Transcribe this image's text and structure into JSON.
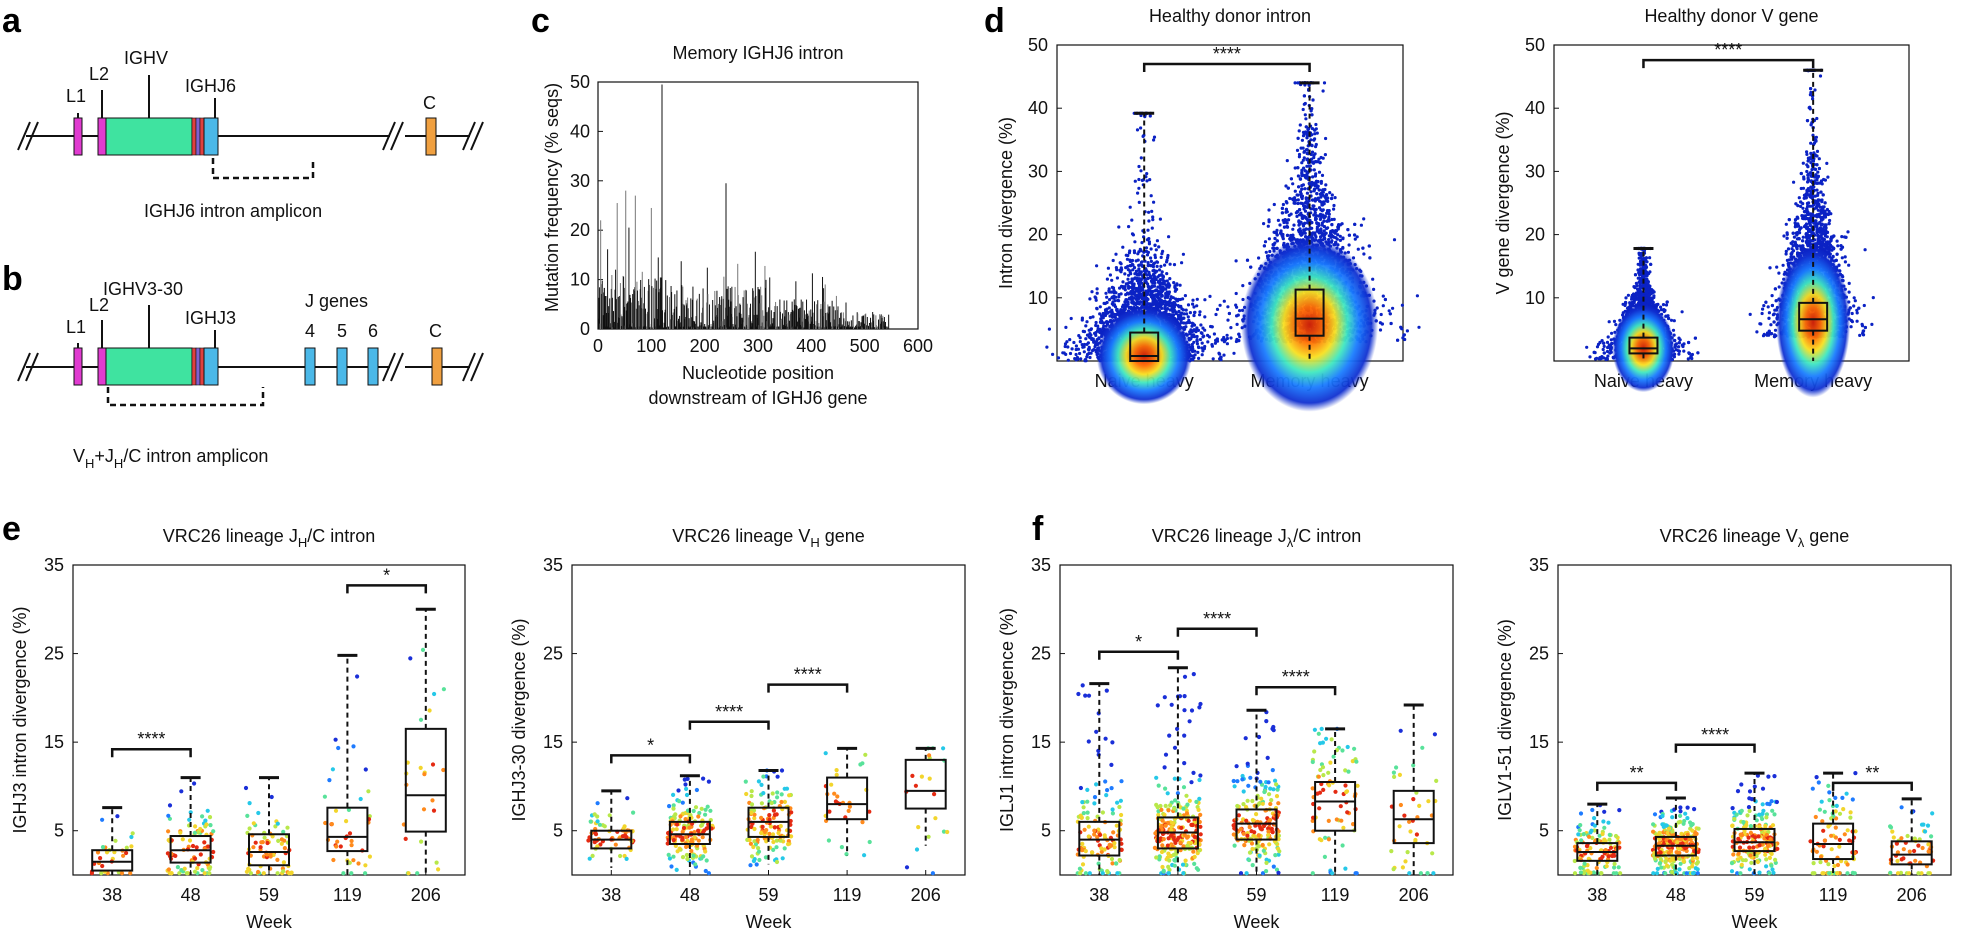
{
  "colors": {
    "exon_magenta": "#e03bd0",
    "v_gene_green": "#3fe3a0",
    "j_blue": "#4bb8e8",
    "c_orange": "#f0a040",
    "stripe_red": "#e04040",
    "stripe_purple": "#8060d0",
    "black": "#111111"
  },
  "panel_a": {
    "letter": "a",
    "labels": {
      "l1": "L1",
      "l2": "L2",
      "ighv": "IGHV",
      "ighj6": "IGHJ6",
      "c": "C"
    },
    "amplicon_label": "IGHJ6 intron amplicon"
  },
  "panel_b": {
    "letter": "b",
    "labels": {
      "l1": "L1",
      "l2": "L2",
      "ighv": "IGHV3-30",
      "ighj3": "IGHJ3",
      "j_genes": "J genes",
      "j4": "4",
      "j5": "5",
      "j6": "6",
      "c": "C"
    },
    "amplicon_label_parts": [
      "V",
      "H",
      "+J",
      "H",
      "/C intron amplicon"
    ]
  },
  "chart_data": [
    {
      "id": "c",
      "letter": "c",
      "type": "bar",
      "title": "Memory IGHJ6 intron",
      "ylabel": "Mutation frequency (% seqs)",
      "xlabel_lines": [
        "Nucleotide position",
        "downstream of IGHJ6 gene"
      ],
      "xlim": [
        0,
        600
      ],
      "ylim": [
        0,
        50
      ],
      "xticks": [
        0,
        100,
        200,
        300,
        400,
        500,
        600
      ],
      "yticks": [
        0,
        10,
        20,
        30,
        40,
        50
      ],
      "notable_peaks": [
        {
          "x": 120,
          "y": 49.5
        },
        {
          "x": 240,
          "y": 29.5
        },
        {
          "x": 52,
          "y": 28
        },
        {
          "x": 70,
          "y": 27
        },
        {
          "x": 36,
          "y": 25.5
        },
        {
          "x": 100,
          "y": 24.5
        },
        {
          "x": 5,
          "y": 22
        }
      ],
      "x_end": 545
    },
    {
      "id": "d1",
      "letter": "d",
      "type": "box",
      "title": "Healthy donor intron",
      "ylabel": "Intron divergence (%)",
      "ylim": [
        0,
        50
      ],
      "yticks": [
        10,
        20,
        30,
        40,
        50
      ],
      "categories": [
        "Naive heavy",
        "Memory heavy"
      ],
      "boxes": [
        {
          "q1": 0,
          "median": 0.8,
          "q3": 4.5,
          "whisker_low": 0,
          "whisker_high": 39.2,
          "cloud_spread": 25
        },
        {
          "q1": 4,
          "median": 6.7,
          "q3": 11.3,
          "whisker_low": 0,
          "whisker_high": 44,
          "cloud_spread": 36
        }
      ],
      "significance": [
        {
          "from": 0,
          "to": 1,
          "y": 47,
          "label": "****"
        }
      ]
    },
    {
      "id": "d2",
      "type": "box",
      "title": "Healthy donor V gene",
      "ylabel": "V gene divergence (%)",
      "ylim": [
        0,
        50
      ],
      "yticks": [
        10,
        20,
        30,
        40,
        50
      ],
      "categories": [
        "Naive heavy",
        "Memory heavy"
      ],
      "boxes": [
        {
          "q1": 1.2,
          "median": 2,
          "q3": 3.7,
          "whisker_low": 0,
          "whisker_high": 17.8,
          "cloud_spread": 16
        },
        {
          "q1": 4.8,
          "median": 6.6,
          "q3": 9.2,
          "whisker_low": 0,
          "whisker_high": 46,
          "cloud_spread": 19
        }
      ],
      "significance": [
        {
          "from": 0,
          "to": 1,
          "y": 47.6,
          "label": "****"
        }
      ]
    },
    {
      "id": "e1",
      "letter": "e",
      "type": "box",
      "title_parts": [
        "VRC26 lineage J",
        "H",
        "/C intron"
      ],
      "ylabel": "IGHJ3 intron divergence (%)",
      "xlabel": "Week",
      "ylim": [
        0,
        35
      ],
      "yticks": [
        5,
        15,
        25,
        35
      ],
      "categories": [
        "38",
        "48",
        "59",
        "119",
        "206"
      ],
      "boxes": [
        {
          "q1": 0.5,
          "median": 1.5,
          "q3": 2.8,
          "whisker_low": 0,
          "whisker_high": 7.6,
          "n": 30
        },
        {
          "q1": 1.4,
          "median": 2.8,
          "q3": 4.4,
          "whisker_low": 0,
          "whisker_high": 11,
          "n": 90
        },
        {
          "q1": 1.1,
          "median": 2.6,
          "q3": 4.6,
          "whisker_low": 0,
          "whisker_high": 11,
          "n": 70
        },
        {
          "q1": 2.7,
          "median": 4.3,
          "q3": 7.6,
          "whisker_low": 0,
          "whisker_high": 24.8,
          "n": 40
        },
        {
          "q1": 4.9,
          "median": 9,
          "q3": 16.5,
          "whisker_low": 0,
          "whisker_high": 30,
          "n": 25
        }
      ],
      "significance": [
        {
          "from": 0,
          "to": 1,
          "y": 14.2,
          "label": "****"
        },
        {
          "from": 3,
          "to": 4,
          "y": 32.7,
          "label": "*"
        }
      ]
    },
    {
      "id": "e2",
      "type": "box",
      "title_parts": [
        "VRC26 lineage V",
        "H",
        " gene"
      ],
      "ylabel": "IGHJ3-30 divergence (%)",
      "xlabel": "Week",
      "ylim": [
        0,
        35
      ],
      "yticks": [
        5,
        15,
        25,
        35
      ],
      "categories": [
        "38",
        "48",
        "59",
        "119",
        "206"
      ],
      "boxes": [
        {
          "q1": 3,
          "median": 4,
          "q3": 5,
          "whisker_low": 0.8,
          "whisker_high": 9.5,
          "n": 60
        },
        {
          "q1": 3.5,
          "median": 4.6,
          "q3": 6,
          "whisker_low": 0.5,
          "whisker_high": 11.2,
          "n": 160
        },
        {
          "q1": 4.3,
          "median": 6,
          "q3": 7.6,
          "whisker_low": 1.2,
          "whisker_high": 11.8,
          "n": 130
        },
        {
          "q1": 6.3,
          "median": 8,
          "q3": 11,
          "whisker_low": 2.2,
          "whisker_high": 14.3,
          "n": 30
        },
        {
          "q1": 7.5,
          "median": 9.5,
          "q3": 13,
          "whisker_low": 3.3,
          "whisker_high": 14.3,
          "n": 20
        }
      ],
      "significance": [
        {
          "from": 0,
          "to": 1,
          "y": 13.5,
          "label": "*"
        },
        {
          "from": 1,
          "to": 2,
          "y": 17.3,
          "label": "****"
        },
        {
          "from": 2,
          "to": 3,
          "y": 21.5,
          "label": "****"
        }
      ]
    },
    {
      "id": "f1",
      "letter": "f",
      "type": "box",
      "title_parts": [
        "VRC26 lineage J",
        "λ",
        "/C intron"
      ],
      "ylabel": "IGLJ1 intron divergence (%)",
      "xlabel": "Week",
      "ylim": [
        0,
        35
      ],
      "yticks": [
        5,
        15,
        25,
        35
      ],
      "categories": [
        "38",
        "48",
        "59",
        "119",
        "206"
      ],
      "boxes": [
        {
          "q1": 2.2,
          "median": 4,
          "q3": 6,
          "whisker_low": 0,
          "whisker_high": 21.6,
          "n": 120
        },
        {
          "q1": 3,
          "median": 4.8,
          "q3": 6.5,
          "whisker_low": 0,
          "whisker_high": 23.4,
          "n": 260
        },
        {
          "q1": 4,
          "median": 5.8,
          "q3": 7.4,
          "whisker_low": 0,
          "whisker_high": 18.6,
          "n": 200
        },
        {
          "q1": 5,
          "median": 8.3,
          "q3": 10.5,
          "whisker_low": 0,
          "whisker_high": 16.5,
          "n": 80
        },
        {
          "q1": 3.6,
          "median": 6.3,
          "q3": 9.5,
          "whisker_low": 0,
          "whisker_high": 19.2,
          "n": 40
        }
      ],
      "significance": [
        {
          "from": 0,
          "to": 1,
          "y": 25.2,
          "label": "*"
        },
        {
          "from": 1,
          "to": 2,
          "y": 27.8,
          "label": "****"
        },
        {
          "from": 2,
          "to": 3,
          "y": 21.2,
          "label": "****"
        }
      ]
    },
    {
      "id": "f2",
      "type": "box",
      "title_parts": [
        "VRC26 lineage V",
        "λ",
        " gene"
      ],
      "ylabel": "IGLV1-51 divergence (%)",
      "xlabel": "Week",
      "ylim": [
        0,
        35
      ],
      "yticks": [
        5,
        15,
        25,
        35
      ],
      "categories": [
        "38",
        "48",
        "59",
        "119",
        "206"
      ],
      "boxes": [
        {
          "q1": 1.6,
          "median": 2.6,
          "q3": 3.6,
          "whisker_low": 0,
          "whisker_high": 8,
          "n": 120
        },
        {
          "q1": 2.2,
          "median": 3.3,
          "q3": 4.3,
          "whisker_low": 0,
          "whisker_high": 8.7,
          "n": 260
        },
        {
          "q1": 2.7,
          "median": 3.7,
          "q3": 5.2,
          "whisker_low": 0,
          "whisker_high": 11.5,
          "n": 200
        },
        {
          "q1": 1.8,
          "median": 3.5,
          "q3": 5.8,
          "whisker_low": 0,
          "whisker_high": 11.5,
          "n": 90
        },
        {
          "q1": 1.2,
          "median": 2.3,
          "q3": 3.8,
          "whisker_low": 0,
          "whisker_high": 8.6,
          "n": 60
        }
      ],
      "significance": [
        {
          "from": 0,
          "to": 1,
          "y": 10.4,
          "label": "**"
        },
        {
          "from": 1,
          "to": 2,
          "y": 14.7,
          "label": "****"
        },
        {
          "from": 3,
          "to": 4,
          "y": 10.4,
          "label": "**"
        }
      ]
    }
  ]
}
